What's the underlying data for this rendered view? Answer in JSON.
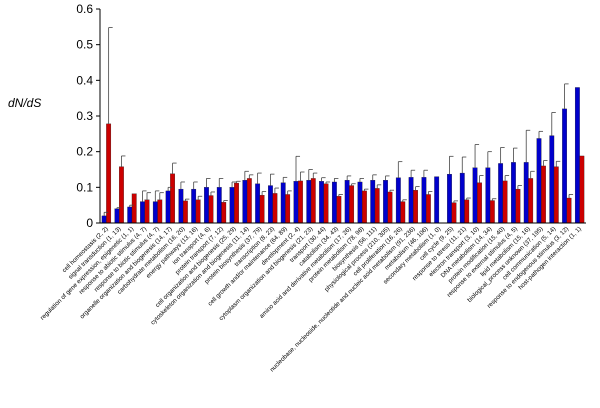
{
  "chart_data": {
    "type": "bar",
    "title": "",
    "xlabel": "",
    "ylabel": "dN/dS",
    "ylim": [
      0,
      0.6
    ],
    "yticks": [
      "0",
      "0.1",
      "0.2",
      "0.3",
      "0.4",
      "0.5",
      "0.6"
    ],
    "grid": false,
    "legend": "none",
    "categories": [
      "cell homeostasis (2, 2)",
      "signal transduction (1, 13)",
      "regulation of gene expression, epigenetic (1, 1)",
      "response to abiotic stimulus (4, 7)",
      "response to biotic stimulus (4, 7)",
      "organelle organization and biogenesis (14, 17)",
      "carbohydrate metabolism (16, 20)",
      "energy pathways (13, 16)",
      "ion transport (4, 6)",
      "protein transport (7, 12)",
      "cell organization and biogenesis (25, 29)",
      "cytoskeleton organization and biogenesis (11, 14)",
      "protein biosynthesis (37, 79)",
      "transcription (8, 23)",
      "cell growth and/or maintenance (64, 89)",
      "development (2, 4)",
      "cytoplasm organization and biogenesis (21, 23)",
      "transport (30, 44)",
      "catabolism (34, 43)",
      "amino acid and derivative metabolism (17, 26)",
      "protein metabolism (78, 98)",
      "biosynthesis (56, 111)",
      "physiological process (210, 305)",
      "cell proliferation (16, 26)",
      "nucleobase, nucleoside, nucleotide and nucleic acid metabolism (91, 236)",
      "metabolism (46, 106)",
      "secondary metabolism (1, 0)",
      "cell cycle (9, 25)",
      "response to stress (11, 21)",
      "electron transport (3, 10)",
      "DNA metabolism (14, 34)",
      "protein modification (15, 40)",
      "response to external stimulus (4, 5)",
      "lipid metabolism (15, 16)",
      "biological_process unknown (37, 195)",
      "cell communication (5, 14)",
      "response to endogenous stimulus (3, 12)",
      "host-pathogen interaction (1, 1)"
    ],
    "series": [
      {
        "name": "",
        "color": "#0000cc",
        "values": [
          0.02,
          0.04,
          0.045,
          0.06,
          0.06,
          0.09,
          0.095,
          0.095,
          0.1,
          0.1,
          0.1,
          0.12,
          0.11,
          0.105,
          0.113,
          0.117,
          0.12,
          0.117,
          0.115,
          0.12,
          0.115,
          0.12,
          0.12,
          0.127,
          0.128,
          0.128,
          0.13,
          0.137,
          0.14,
          0.155,
          0.155,
          0.167,
          0.17,
          0.17,
          0.237,
          0.245,
          0.32,
          0.38
        ],
        "errors": [
          0.01,
          0.003,
          0.005,
          0.03,
          0.03,
          0.01,
          0.02,
          0.02,
          0.025,
          0.025,
          0.015,
          0.025,
          0.03,
          0.032,
          0.015,
          0.07,
          0.03,
          0.01,
          0.01,
          0.012,
          0.01,
          0.015,
          0.012,
          0.045,
          0.02,
          0.02,
          0.0,
          0.05,
          0.045,
          0.065,
          0.045,
          0.045,
          0.04,
          0.09,
          0.02,
          0.065,
          0.07,
          0.0
        ]
      },
      {
        "name": "",
        "color": "#cc0000",
        "values": [
          0.278,
          0.158,
          0.082,
          0.065,
          0.065,
          0.138,
          0.062,
          0.065,
          0.077,
          0.058,
          0.112,
          0.125,
          0.078,
          0.083,
          0.08,
          0.118,
          0.125,
          0.11,
          0.075,
          0.105,
          0.09,
          0.097,
          0.087,
          0.06,
          0.092,
          0.08,
          0.0,
          0.057,
          0.065,
          0.113,
          0.063,
          0.118,
          0.095,
          0.125,
          0.16,
          0.158,
          0.07,
          0.188
        ],
        "errors": [
          0.27,
          0.03,
          0.0,
          0.02,
          0.02,
          0.03,
          0.005,
          0.01,
          0.01,
          0.005,
          0.005,
          0.01,
          0.01,
          0.015,
          0.01,
          0.025,
          0.015,
          0.005,
          0.005,
          0.005,
          0.005,
          0.01,
          0.005,
          0.005,
          0.01,
          0.008,
          0.0,
          0.005,
          0.005,
          0.02,
          0.005,
          0.015,
          0.01,
          0.02,
          0.015,
          0.015,
          0.01,
          0.0
        ]
      }
    ]
  }
}
